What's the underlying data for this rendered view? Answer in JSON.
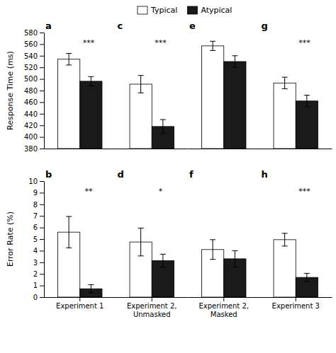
{
  "chart_data": [
    {
      "type": "bar",
      "title": "a",
      "annotations": [
        "***"
      ],
      "ylabel": "Response Time (ms)",
      "categories": [
        null
      ],
      "series": [
        {
          "name": "Typical",
          "color": "#ffffff",
          "values": [
            534
          ],
          "errors": [
            10
          ]
        },
        {
          "name": "Atypical",
          "color": "#1a1a1a",
          "values": [
            496
          ],
          "errors": [
            8
          ]
        }
      ],
      "ylim": [
        380,
        580
      ],
      "yticks": [
        380,
        400,
        420,
        440,
        460,
        480,
        500,
        520,
        540,
        560,
        580
      ],
      "tick_labels": "y"
    },
    {
      "type": "bar",
      "title": "c",
      "annotations": [
        "***"
      ],
      "categories": [
        null
      ],
      "series": [
        {
          "color": "#ffffff",
          "values": [
            491
          ],
          "errors": [
            15
          ]
        },
        {
          "color": "#1a1a1a",
          "values": [
            418
          ],
          "errors": [
            12
          ]
        }
      ],
      "ylim": [
        380,
        580
      ],
      "tick_labels": false
    },
    {
      "type": "bar",
      "title": "e",
      "categories": [
        null
      ],
      "series": [
        {
          "color": "#ffffff",
          "values": [
            557
          ],
          "errors": [
            8
          ]
        },
        {
          "color": "#1a1a1a",
          "values": [
            530
          ],
          "errors": [
            10
          ]
        }
      ],
      "ylim": [
        380,
        580
      ],
      "tick_labels": false
    },
    {
      "type": "bar",
      "title": "g",
      "annotations": [
        "***"
      ],
      "categories": [
        null
      ],
      "series": [
        {
          "color": "#ffffff",
          "values": [
            493
          ],
          "errors": [
            10
          ]
        },
        {
          "color": "#1a1a1a",
          "values": [
            462
          ],
          "errors": [
            10
          ]
        }
      ],
      "ylim": [
        380,
        580
      ],
      "tick_labels": false
    },
    {
      "type": "bar",
      "title": "b",
      "annotations": [
        "**"
      ],
      "ylabel": "Error Rate (%)",
      "categories": [
        "Experiment 1"
      ],
      "series": [
        {
          "color": "#ffffff",
          "values": [
            5.6
          ],
          "errors": [
            1.35
          ]
        },
        {
          "color": "#1a1a1a",
          "values": [
            0.72
          ],
          "errors": [
            0.35
          ]
        }
      ],
      "ylim": [
        0,
        10
      ],
      "yticks": [
        0,
        1,
        2,
        3,
        4,
        5,
        6,
        7,
        8,
        9,
        10
      ]
    },
    {
      "type": "bar",
      "title": "d",
      "annotations": [
        "*"
      ],
      "categories": [
        "Experiment 2,\nUnmasked"
      ],
      "series": [
        {
          "color": "#ffffff",
          "values": [
            4.75
          ],
          "errors": [
            1.2
          ]
        },
        {
          "color": "#1a1a1a",
          "values": [
            3.15
          ],
          "errors": [
            0.55
          ]
        }
      ],
      "ylim": [
        0,
        10
      ],
      "tick_labels": "x"
    },
    {
      "type": "bar",
      "title": "f",
      "categories": [
        "Experiment 2,\nMasked"
      ],
      "series": [
        {
          "color": "#ffffff",
          "values": [
            4.1
          ],
          "errors": [
            0.85
          ]
        },
        {
          "color": "#1a1a1a",
          "values": [
            3.3
          ],
          "errors": [
            0.7
          ]
        }
      ],
      "ylim": [
        0,
        10
      ],
      "tick_labels": "x"
    },
    {
      "type": "bar",
      "title": "h",
      "annotations": [
        "***"
      ],
      "categories": [
        "Experiment 3"
      ],
      "series": [
        {
          "color": "#ffffff",
          "values": [
            4.95
          ],
          "errors": [
            0.55
          ]
        },
        {
          "color": "#1a1a1a",
          "values": [
            1.7
          ],
          "errors": [
            0.35
          ]
        }
      ],
      "ylim": [
        0,
        10
      ],
      "tick_labels": "x"
    }
  ]
}
